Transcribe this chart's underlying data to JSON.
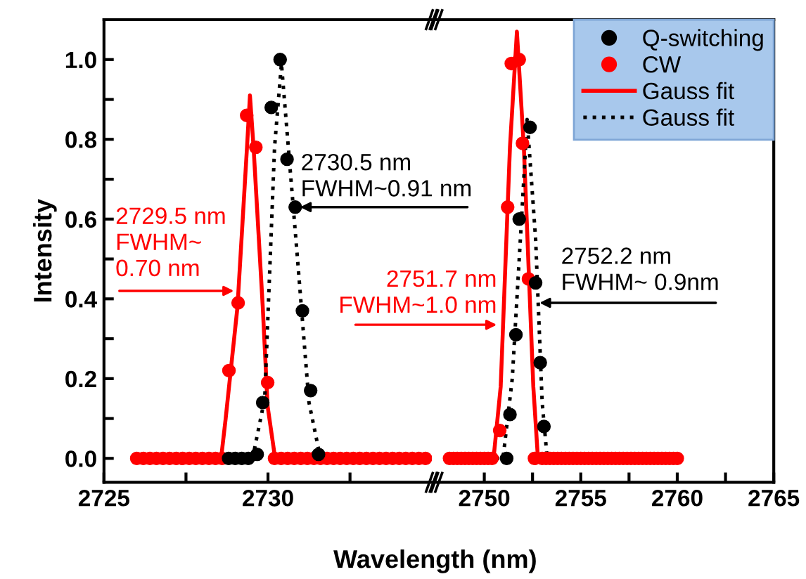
{
  "chart_data": [
    {
      "type": "scatter",
      "xlabel": "Wavelength (nm)",
      "ylabel": "Intensity",
      "xlim": [
        2725,
        2735
      ],
      "xticks": [
        2725,
        {
          "value": 2727.5,
          "label": null
        },
        2730,
        {
          "value": 2732.5,
          "label": null
        }
      ],
      "ylim": [
        -0.06,
        1.1
      ],
      "yticks": [
        {
          "value": 0,
          "label": "0.0"
        },
        {
          "value": 0.1,
          "label": null
        },
        {
          "value": 0.2,
          "label": "0.2"
        },
        {
          "value": 0.3,
          "label": null
        },
        {
          "value": 0.4,
          "label": "0.4"
        },
        {
          "value": 0.5,
          "label": null
        },
        {
          "value": 0.6,
          "label": "0.6"
        },
        {
          "value": 0.7,
          "label": null
        },
        {
          "value": 0.8,
          "label": "0.8"
        },
        {
          "value": 0.9,
          "label": null
        },
        {
          "value": 1.0,
          "label": "1.0"
        }
      ],
      "grid": false,
      "legend": false,
      "marker": "circle",
      "series": [
        {
          "color": "#000000",
          "x": [
            2728.8,
            2729.0,
            2729.2,
            2729.4,
            2729.67,
            2729.84,
            2730.1,
            2730.37,
            2730.58,
            2730.83,
            2731.05,
            2731.3,
            2731.54
          ],
          "values": [
            0,
            0,
            0,
            0,
            0.01,
            0.14,
            0.88,
            1.0,
            0.75,
            0.63,
            0.37,
            0.17,
            0.01
          ]
        },
        {
          "color": "#ff0000",
          "x": [
            2726.0,
            2726.2,
            2726.4,
            2726.6,
            2726.8,
            2727.0,
            2727.2,
            2727.4,
            2727.6,
            2727.8,
            2728.0,
            2728.2,
            2728.4,
            2728.6,
            2728.81,
            2729.09,
            2729.35,
            2729.63,
            2729.99,
            2730.2,
            2730.4,
            2730.6,
            2730.8,
            2731.0,
            2731.2,
            2731.4,
            2731.6,
            2731.8,
            2732.0,
            2732.2,
            2732.4,
            2732.6,
            2732.8,
            2733.0,
            2733.2,
            2733.4,
            2733.6,
            2733.8,
            2734.0,
            2734.2,
            2734.4,
            2734.6,
            2734.8
          ],
          "values": [
            0,
            0,
            0,
            0,
            0,
            0,
            0,
            0,
            0,
            0,
            0,
            0,
            0,
            0,
            0.22,
            0.39,
            0.86,
            0.78,
            0.19,
            0,
            0,
            0,
            0,
            0,
            0,
            0,
            0,
            0,
            0,
            0,
            0,
            0,
            0,
            0,
            0,
            0,
            0,
            0,
            0,
            0,
            0,
            0,
            0
          ]
        },
        {
          "type": "line",
          "marker": "none",
          "color": "#ff0000",
          "line_style": "solid",
          "x": [
            2726.0,
            2728.57,
            2728.71,
            2729.07,
            2729.36,
            2729.45,
            2729.56,
            2729.84,
            2729.99,
            2730.2,
            2734.8
          ],
          "values": [
            0,
            0,
            0.1,
            0.38,
            0.78,
            0.91,
            0.78,
            0.38,
            0.13,
            0.01,
            0
          ]
        },
        {
          "type": "line",
          "marker": "none",
          "color": "#000000",
          "line_style": "dotted",
          "x": [
            2728.1,
            2729.53,
            2729.9,
            2730.2,
            2730.41,
            2730.9,
            2731.25,
            2731.6,
            2734.8
          ],
          "values": [
            0,
            0,
            0.15,
            0.78,
            0.99,
            0.5,
            0.14,
            0,
            0
          ]
        }
      ],
      "annotations": [
        {
          "text": "2729.5 nm\nFWHM~\n0.70 nm",
          "x": 2729.08,
          "y": 0.42
        },
        {
          "text": "2730.5 nm\nFWHM~0.91 nm",
          "x": 2730.86,
          "y": 0.63
        }
      ]
    },
    {
      "type": "scatter",
      "xlim": [
        2747.5,
        2765
      ],
      "xticks": [
        2750,
        {
          "value": 2752.5,
          "label": null
        },
        2755,
        {
          "value": 2757.5,
          "label": null
        },
        2760,
        {
          "value": 2762.5,
          "label": null
        },
        2765
      ],
      "ylim": [
        -0.06,
        1.1
      ],
      "tick_labels": "x",
      "grid": false,
      "legend": "top right",
      "marker": "circle",
      "series": [
        {
          "name": "Q-switching",
          "color": "#000000",
          "x": [
            2751.16,
            2751.33,
            2751.64,
            2751.81,
            2752.37,
            2752.66,
            2752.9,
            2753.09
          ],
          "values": [
            0,
            0.11,
            0.31,
            0.6,
            0.83,
            0.44,
            0.24,
            0.08
          ]
        },
        {
          "name": "CW",
          "color": "#ff0000",
          "x": [
            2748.2,
            2748.4,
            2748.6,
            2748.8,
            2749.0,
            2749.2,
            2749.4,
            2749.6,
            2749.8,
            2750.0,
            2750.2,
            2750.4,
            2750.8,
            2751.21,
            2751.4,
            2751.81,
            2751.98,
            2752.29,
            2752.6,
            2753.0,
            2753.2,
            2753.4,
            2753.6,
            2753.8,
            2754.0,
            2754.2,
            2754.4,
            2754.6,
            2754.8,
            2755.0,
            2755.2,
            2755.4,
            2755.6,
            2755.8,
            2756.0,
            2756.2,
            2756.4,
            2756.6,
            2756.8,
            2757.0,
            2757.2,
            2757.4,
            2757.6,
            2757.8,
            2758.0,
            2758.2,
            2758.4,
            2758.6,
            2758.8,
            2759.0,
            2759.2,
            2759.4,
            2759.6,
            2759.8,
            2760.0
          ],
          "values": [
            0,
            0,
            0,
            0,
            0,
            0,
            0,
            0,
            0,
            0,
            0,
            0,
            0.07,
            0.63,
            0.99,
            1.0,
            0.79,
            0.45,
            0,
            0,
            0,
            0,
            0,
            0,
            0,
            0,
            0,
            0,
            0,
            0,
            0,
            0,
            0,
            0,
            0,
            0,
            0,
            0,
            0,
            0,
            0,
            0,
            0,
            0,
            0,
            0,
            0,
            0,
            0,
            0,
            0,
            0,
            0,
            0,
            0
          ]
        },
        {
          "type": "line",
          "marker": "none",
          "name": "Gauss fit",
          "color": "#ff0000",
          "line_style": "solid",
          "x": [
            2748.2,
            2750.48,
            2750.85,
            2751.33,
            2751.69,
            2752.05,
            2752.54,
            2752.78,
            2760.0
          ],
          "values": [
            0,
            0,
            0.18,
            0.78,
            1.07,
            0.78,
            0.18,
            0,
            0
          ]
        },
        {
          "type": "line",
          "marker": "none",
          "name": "Gauss fit",
          "color": "#000000",
          "line_style": "dotted",
          "x": [
            2750.6,
            2750.97,
            2751.45,
            2751.93,
            2752.22,
            2752.66,
            2753.0,
            2753.26,
            2760.0
          ],
          "values": [
            0,
            0,
            0.2,
            0.6,
            0.85,
            0.55,
            0.14,
            0,
            0
          ]
        }
      ],
      "annotations": [
        {
          "text": "2751.7 nm\nFWHM~1.0 nm",
          "x": 2750.85,
          "y": 0.335
        },
        {
          "text": "2752.2 nm\nFWHM~ 0.9nm",
          "x": 2752.66,
          "y": 0.39
        }
      ]
    }
  ]
}
